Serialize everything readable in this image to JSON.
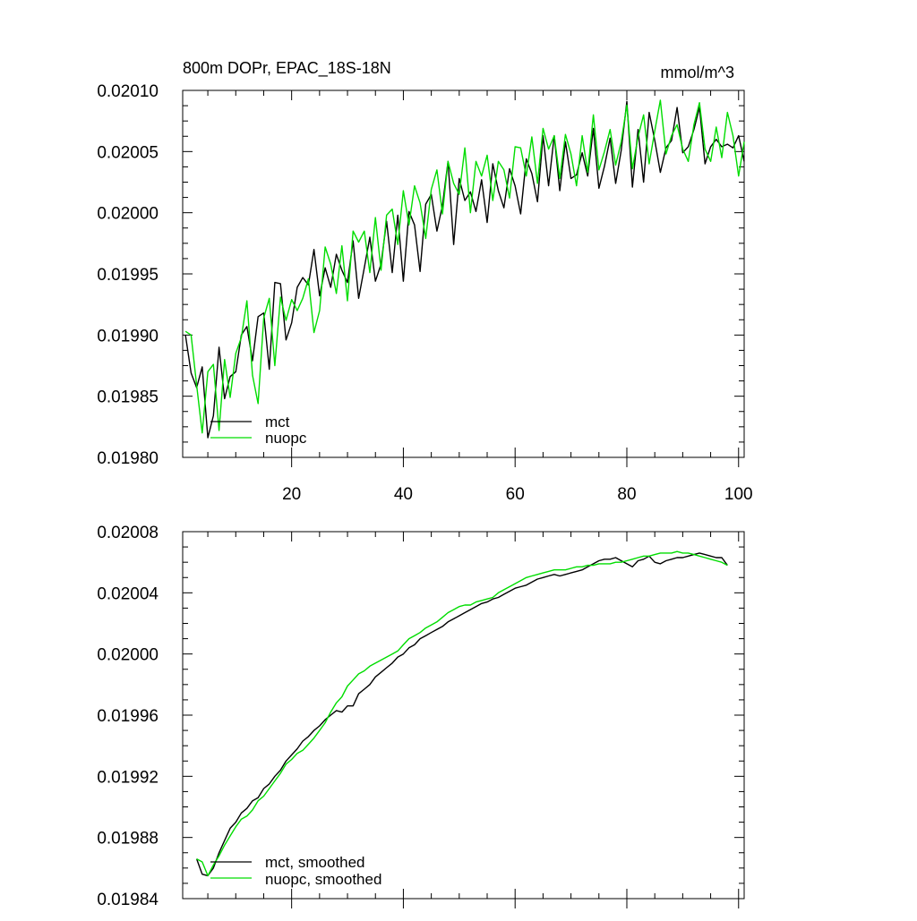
{
  "chart_data": [
    {
      "type": "line",
      "title": "800m DOPr, EPAC_18S-18N",
      "units": "mmol/m^3",
      "xlim": [
        0.5,
        101
      ],
      "ylim": [
        0.0198,
        0.0201
      ],
      "x_ticks": [
        20,
        40,
        60,
        80,
        100
      ],
      "y_ticks": [
        "0.01980",
        "0.01985",
        "0.01990",
        "0.01995",
        "0.02000",
        "0.02005",
        "0.02010"
      ],
      "x_tick_labels_shown": true,
      "legend": {
        "placement": "bottom-left"
      },
      "series": [
        {
          "name": "mct",
          "color": "#000000",
          "x_start": 1,
          "values": [
            0.0199,
            0.019869,
            0.019857,
            0.019874,
            0.019816,
            0.019834,
            0.01989,
            0.019848,
            0.019866,
            0.01987,
            0.0199,
            0.019907,
            0.019879,
            0.019915,
            0.019918,
            0.019872,
            0.019943,
            0.019942,
            0.019896,
            0.01991,
            0.019939,
            0.019947,
            0.019941,
            0.01997,
            0.019932,
            0.019955,
            0.019939,
            0.019966,
            0.019953,
            0.019943,
            0.019977,
            0.01993,
            0.019955,
            0.01998,
            0.019944,
            0.019958,
            0.019993,
            0.019951,
            0.019998,
            0.019944,
            0.020001,
            0.01999,
            0.019952,
            0.020007,
            0.020015,
            0.019985,
            0.020006,
            0.020042,
            0.019974,
            0.020028,
            0.02001,
            0.020017,
            0.020001,
            0.020027,
            0.019992,
            0.02004,
            0.020018,
            0.020004,
            0.020036,
            0.020022,
            0.019999,
            0.020044,
            0.020032,
            0.020009,
            0.020063,
            0.020022,
            0.020063,
            0.020018,
            0.020058,
            0.020028,
            0.020031,
            0.020049,
            0.02003,
            0.020069,
            0.02002,
            0.020038,
            0.020061,
            0.020024,
            0.020051,
            0.020091,
            0.020021,
            0.020068,
            0.020025,
            0.020082,
            0.020059,
            0.020033,
            0.020053,
            0.020059,
            0.020086,
            0.020049,
            0.020054,
            0.020068,
            0.020086,
            0.02004,
            0.020054,
            0.02006,
            0.020054,
            0.020056,
            0.020053,
            0.020063,
            0.020042
          ]
        },
        {
          "name": "nuopc",
          "color": "#00dd00",
          "x_start": 1,
          "values": [
            0.019903,
            0.0199,
            0.019859,
            0.01982,
            0.01987,
            0.019876,
            0.019822,
            0.01988,
            0.019849,
            0.019885,
            0.019898,
            0.019928,
            0.019867,
            0.019844,
            0.019914,
            0.01993,
            0.019875,
            0.019931,
            0.019912,
            0.019929,
            0.01992,
            0.01993,
            0.019946,
            0.019902,
            0.01992,
            0.019972,
            0.019958,
            0.019934,
            0.019973,
            0.019928,
            0.019985,
            0.019976,
            0.019985,
            0.019951,
            0.019996,
            0.019953,
            0.019998,
            0.020003,
            0.019974,
            0.020018,
            0.01999,
            0.020022,
            0.020008,
            0.019979,
            0.020019,
            0.020035,
            0.019999,
            0.020042,
            0.020024,
            0.020015,
            0.020053,
            0.02,
            0.020042,
            0.02003,
            0.020047,
            0.02001,
            0.020042,
            0.020035,
            0.020012,
            0.020054,
            0.020053,
            0.02003,
            0.020062,
            0.020024,
            0.020069,
            0.020052,
            0.020063,
            0.020028,
            0.020064,
            0.020048,
            0.020022,
            0.020063,
            0.020033,
            0.02008,
            0.020035,
            0.02005,
            0.020068,
            0.020039,
            0.020058,
            0.020088,
            0.020036,
            0.020062,
            0.02008,
            0.02004,
            0.020067,
            0.020092,
            0.020048,
            0.020063,
            0.020072,
            0.020052,
            0.020042,
            0.020072,
            0.02009,
            0.020052,
            0.020042,
            0.02007,
            0.020045,
            0.020082,
            0.020063,
            0.02003,
            0.020058
          ]
        }
      ]
    },
    {
      "type": "line",
      "title": "",
      "xlim": [
        0.5,
        101
      ],
      "ylim": [
        0.01984,
        0.02008
      ],
      "x_ticks": [
        20,
        40,
        60,
        80,
        100
      ],
      "y_ticks": [
        "0.01984",
        "0.01988",
        "0.01992",
        "0.01996",
        "0.02000",
        "0.02004",
        "0.02008"
      ],
      "x_tick_labels_shown": false,
      "legend": {
        "placement": "bottom-left"
      },
      "series": [
        {
          "name": "mct, smoothed",
          "color": "#000000",
          "x_start": 3,
          "values": [
            0.019866,
            0.019856,
            0.019855,
            0.01986,
            0.01987,
            0.019878,
            0.019886,
            0.01989,
            0.019896,
            0.019899,
            0.019904,
            0.019906,
            0.019912,
            0.019915,
            0.01992,
            0.019924,
            0.01993,
            0.019934,
            0.019938,
            0.019943,
            0.019946,
            0.01995,
            0.019953,
            0.019957,
            0.01996,
            0.019963,
            0.019962,
            0.019966,
            0.019966,
            0.019974,
            0.019977,
            0.01998,
            0.019985,
            0.019988,
            0.019991,
            0.019994,
            0.019998,
            0.02,
            0.020004,
            0.020006,
            0.02001,
            0.020012,
            0.020014,
            0.020016,
            0.020018,
            0.020021,
            0.020023,
            0.020025,
            0.020027,
            0.020029,
            0.020031,
            0.020033,
            0.020034,
            0.020036,
            0.020037,
            0.020039,
            0.020041,
            0.020043,
            0.020044,
            0.020045,
            0.020047,
            0.020049,
            0.02005,
            0.020051,
            0.020052,
            0.020051,
            0.020052,
            0.020053,
            0.020054,
            0.020055,
            0.020057,
            0.020059,
            0.020061,
            0.020062,
            0.020062,
            0.020063,
            0.020061,
            0.020059,
            0.020057,
            0.020061,
            0.020062,
            0.020064,
            0.02006,
            0.020059,
            0.020061,
            0.020062,
            0.020063,
            0.020063,
            0.020064,
            0.020065,
            0.020066,
            0.020065,
            0.020064,
            0.020063,
            0.020063,
            0.020058
          ]
        },
        {
          "name": "nuopc, smoothed",
          "color": "#00dd00",
          "x_start": 3,
          "values": [
            0.019866,
            0.019864,
            0.019855,
            0.019862,
            0.019868,
            0.019875,
            0.019881,
            0.019887,
            0.019892,
            0.019894,
            0.019898,
            0.019904,
            0.019907,
            0.019912,
            0.019917,
            0.019922,
            0.019928,
            0.019931,
            0.019935,
            0.019937,
            0.019941,
            0.019945,
            0.01995,
            0.019955,
            0.019962,
            0.019968,
            0.019972,
            0.019979,
            0.019983,
            0.019987,
            0.019989,
            0.019992,
            0.019994,
            0.019996,
            0.019998,
            0.02,
            0.020002,
            0.020006,
            0.02001,
            0.020012,
            0.020014,
            0.020017,
            0.020019,
            0.020021,
            0.020024,
            0.020027,
            0.020029,
            0.020031,
            0.020032,
            0.020032,
            0.020034,
            0.020035,
            0.020036,
            0.020037,
            0.02004,
            0.020042,
            0.020044,
            0.020046,
            0.020048,
            0.02005,
            0.020051,
            0.020052,
            0.020053,
            0.020054,
            0.020055,
            0.020055,
            0.020055,
            0.020056,
            0.020057,
            0.020057,
            0.020058,
            0.020058,
            0.020059,
            0.020059,
            0.020059,
            0.02006,
            0.02006,
            0.020061,
            0.020062,
            0.020063,
            0.020064,
            0.020064,
            0.020065,
            0.020066,
            0.020066,
            0.020066,
            0.020067,
            0.020066,
            0.020066,
            0.020065,
            0.020064,
            0.020063,
            0.020062,
            0.020061,
            0.02006,
            0.020058
          ]
        }
      ]
    }
  ]
}
